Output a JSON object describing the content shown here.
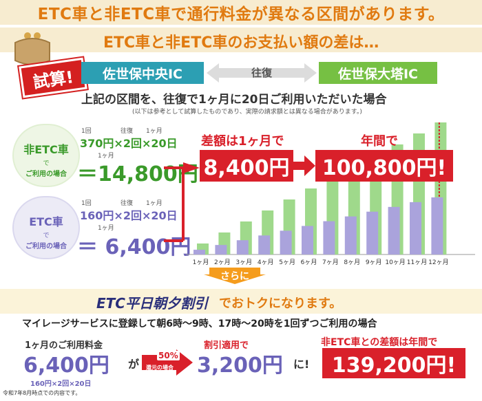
{
  "headline": "ETC車と非ETC車で通行料金が異なる区間があります。",
  "subheadline": "ETC車と非ETC車のお支払い額の差は…",
  "trial_badge": "試算!",
  "route": {
    "from": "佐世保中央IC",
    "between": "往復",
    "to": "佐世保大塔IC"
  },
  "condition": "上記の区間を、往復で1ヶ月に20日ご利用いただいた場合",
  "note": "(以下は参考として試算したものであり、実際の請求額とは異なる場合があります。)",
  "non_etc": {
    "card_title": "非ETC車",
    "card_de": "で",
    "card_use": "ご利用の場合",
    "lbl_once": "1回",
    "lbl_round": "往復",
    "lbl_month": "1ヶ月",
    "price": "370円",
    "times1": "×",
    "round": "2回",
    "times2": "×",
    "days": "20日",
    "eq_lbl": "1ヶ月",
    "total": "＝14,800円"
  },
  "etc": {
    "card_title": "ETC車",
    "card_de": "で",
    "card_use": "ご利用の場合",
    "lbl_once": "1回",
    "lbl_round": "往復",
    "lbl_month": "1ヶ月",
    "price": "160円",
    "times1": "×",
    "round": "2回",
    "times2": "×",
    "days": "20日",
    "eq_lbl": "1ヶ月",
    "total": "＝ 6,400円"
  },
  "diff_month_label": "差額は1ヶ月で",
  "diff_month_value": "8,400円",
  "diff_year_label": "年間で",
  "diff_year_value": "100,800円!",
  "sarani": "さらに",
  "etc_discount": "ETC平日朝夕割引",
  "etc_discount_tail": "でおトクになります。",
  "mileage": "マイレージサービスに登録して朝6時～9時、17時～20時を1回ずつご利用の場合",
  "bottom": {
    "monthly_label": "1ヶ月のご利用料金",
    "monthly_value": "6,400円",
    "ga": "が",
    "pct": "50%",
    "pct_sub": "還元の場合",
    "discount_label": "割引適用で",
    "discount_value": "3,200円",
    "ni": "に!",
    "breakdown": "160円×2回×20日",
    "diff_label": "非ETC車との差額は年間で",
    "diff_value": "139,200円!"
  },
  "footnote": "令和7年8月時点での内容です。",
  "chart_data": {
    "type": "bar",
    "categories": [
      "1ヶ月",
      "2ヶ月",
      "3ヶ月",
      "4ヶ月",
      "5ヶ月",
      "6ヶ月",
      "7ヶ月",
      "8ヶ月",
      "9ヶ月",
      "10ヶ月",
      "11ヶ月",
      "12ヶ月"
    ],
    "series": [
      {
        "values": [
          14800,
          29600,
          44400,
          59200,
          74000,
          88800,
          103600,
          118400,
          133200,
          148000,
          162800,
          177600
        ]
      },
      {
        "values": [
          6400,
          12800,
          19200,
          25600,
          32000,
          38400,
          44800,
          51200,
          57600,
          64000,
          70400,
          76800
        ]
      }
    ],
    "colors": {
      "non_etc": "#9fd98b",
      "etc": "#aaa3dc"
    }
  },
  "colors": {
    "orange": "#e07a10",
    "red": "#d9202a",
    "teal": "#2c9fb3",
    "green": "#76c043",
    "purple": "#6a62b8"
  }
}
